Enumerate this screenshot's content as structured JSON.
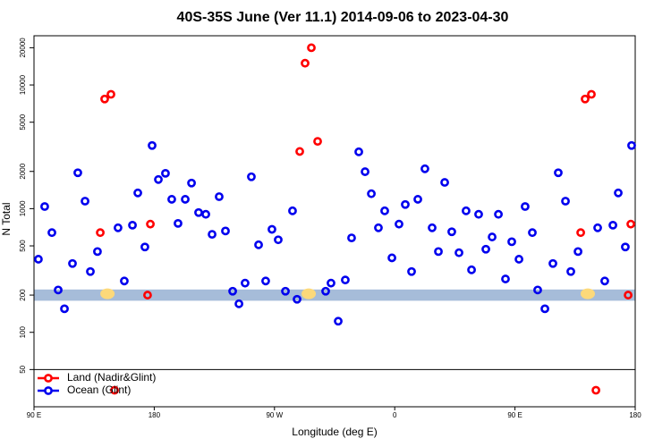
{
  "chart_data": {
    "type": "scatter",
    "title": "40S-35S June (Ver 11.1)   2014-09-06 to 2023-04-30",
    "x_label": "Longitude (deg E)",
    "y_label": "N Total",
    "log_y": true,
    "legend": "lower left",
    "xlim": [
      90,
      540
    ],
    "xticks": [
      {
        "value": 90,
        "label": "90 E"
      },
      180,
      {
        "value": 270,
        "label": "90 W"
      },
      {
        "value": 360,
        "label": "0"
      },
      {
        "value": 450,
        "label": "90 E"
      },
      {
        "value": 540,
        "label": "180"
      }
    ],
    "ylim": [
      25,
      25000
    ],
    "yticks": [
      50,
      100,
      200,
      500,
      1000,
      2000,
      5000,
      10000,
      20000
    ],
    "hline": 50,
    "band": [
      180,
      222
    ],
    "band_color": "#a6bcd9",
    "highlight_x": [
      145,
      295.6,
      504.5
    ],
    "highlight_y": 205,
    "highlight_color": "#fcd97a",
    "series": [
      {
        "name": "Land (Nadir&Glint)",
        "color": "#ff0000",
        "x": [
          139.6,
          142.9,
          147.6,
          150.3,
          175,
          177.1,
          288.9,
          292.9,
          297.6,
          302.3,
          499.2,
          502.5,
          507.2,
          510.6,
          534.7,
          536.7
        ],
        "values": [
          640,
          7700,
          8400,
          34,
          200,
          750,
          2900,
          15000,
          20000,
          3500,
          640,
          7700,
          8400,
          34,
          200,
          750
        ]
      },
      {
        "name": "Ocean (Glint)",
        "color": "#0000ee",
        "x": [
          93.3,
          98,
          103.4,
          108.1,
          112.8,
          118.8,
          122.8,
          128.2,
          132.2,
          137.5,
          152.9,
          157.6,
          163.7,
          167.7,
          173,
          178.4,
          183.1,
          188.4,
          193.1,
          197.8,
          203.2,
          207.9,
          213.2,
          218.6,
          223.3,
          228.6,
          233.3,
          238.7,
          243.4,
          248,
          252.7,
          258.1,
          263.4,
          268.1,
          272.8,
          278.2,
          283.5,
          286.9,
          308.3,
          312.3,
          317.7,
          323,
          327.7,
          333.1,
          337.8,
          342.5,
          347.8,
          352.5,
          357.9,
          363.2,
          367.9,
          372.6,
          377.3,
          382.6,
          388,
          392.7,
          397.4,
          402.7,
          408.1,
          413.4,
          417.5,
          422.8,
          428.2,
          432.9,
          437.6,
          442.9,
          447.6,
          453,
          457.6,
          463,
          467,
          472.4,
          478.4,
          482.4,
          487.8,
          491.8,
          497.2,
          511.9,
          517.2,
          523.3,
          527.3,
          532.6,
          537.3
        ],
        "values": [
          390,
          1040,
          640,
          220,
          155,
          360,
          1950,
          1150,
          310,
          450,
          700,
          260,
          735,
          1340,
          490,
          3240,
          1720,
          1930,
          1190,
          760,
          1190,
          1610,
          930,
          900,
          620,
          1250,
          660,
          215,
          170,
          250,
          1810,
          510,
          260,
          680,
          560,
          215,
          960,
          185,
          215,
          250,
          123,
          265,
          580,
          2880,
          1990,
          1320,
          700,
          960,
          400,
          750,
          1080,
          310,
          1190,
          2100,
          700,
          450,
          1630,
          650,
          440,
          960,
          320,
          900,
          470,
          590,
          900,
          270,
          540,
          390,
          1040,
          640,
          220,
          155,
          360,
          1950,
          1150,
          310,
          450,
          700,
          260,
          735,
          1340,
          490,
          3240
        ]
      }
    ]
  }
}
